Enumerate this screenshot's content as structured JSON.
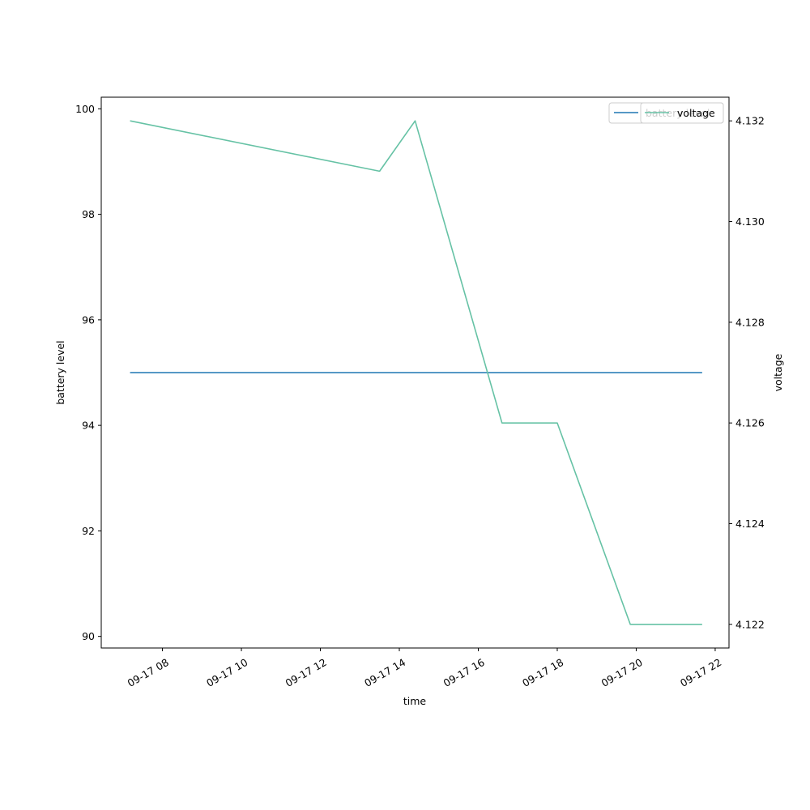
{
  "chart_data": {
    "type": "line",
    "xlabel": "time",
    "ylabel_left": "battery level",
    "ylabel_right": "voltage",
    "x_ticks": [
      "09-17 08",
      "09-17 10",
      "09-17 12",
      "09-17 14",
      "09-17 16",
      "09-17 18",
      "09-17 20",
      "09-17 22"
    ],
    "x_tick_hours": [
      8,
      10,
      12,
      14,
      16,
      18,
      20,
      22
    ],
    "xlim_hours": [
      6.45,
      22.35
    ],
    "ylim_left": [
      89.78,
      100.22
    ],
    "ylim_right": [
      4.12153,
      4.13247
    ],
    "y_ticks_left": [
      90,
      92,
      94,
      96,
      98,
      100
    ],
    "y_ticks_right": [
      "4.122",
      "4.124",
      "4.126",
      "4.128",
      "4.130",
      "4.132"
    ],
    "series": [
      {
        "name": "battery level",
        "axis": "left",
        "color": "#1f77b4",
        "x_hours": [
          7.18,
          21.67
        ],
        "values": [
          95,
          95
        ]
      },
      {
        "name": "voltage",
        "axis": "right",
        "color": "#66c2a5",
        "x_hours": [
          7.18,
          13.5,
          14.4,
          16.6,
          18.0,
          19.85,
          21.67
        ],
        "values": [
          4.132,
          4.131,
          4.132,
          4.126,
          4.126,
          4.122,
          4.122
        ]
      }
    ],
    "legends": [
      {
        "placement": "top-right",
        "entries": [
          "battery level"
        ]
      },
      {
        "placement": "top-right",
        "entries": [
          "voltage"
        ]
      }
    ],
    "grid": false
  }
}
